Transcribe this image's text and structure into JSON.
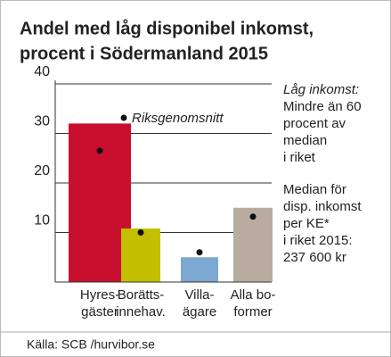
{
  "chart_data": {
    "type": "bar",
    "title": [
      "Andel med låg disponibel inkomst,",
      "procent i Södermanland 2015"
    ],
    "categories": [
      [
        "Hyres-",
        "gäster"
      ],
      [
        "Borätts-",
        "innehav."
      ],
      [
        "Villa-",
        "ägare"
      ],
      [
        "Alla bo-",
        "former"
      ]
    ],
    "values": [
      32,
      10.8,
      5,
      15
    ],
    "colors": [
      "#c8102e",
      "#c4bf00",
      "#7ba7d0",
      "#b8aca1"
    ],
    "reference": {
      "name": "Riksgenomsnitt",
      "color": "#111111",
      "values": [
        26.5,
        10,
        6,
        13.2
      ]
    },
    "ylim": [
      0,
      40
    ],
    "yticks": [
      10,
      20,
      30,
      40
    ],
    "grid": true,
    "notes": [
      "Låg inkomst:",
      "Mindre än 60",
      "procent av",
      "median",
      "i riket",
      "Median för",
      "disp. inkomst",
      "per KE*",
      "i riket 2015:",
      "237 600 kr"
    ],
    "source": "Källa: SCB /hurvibor.se"
  }
}
